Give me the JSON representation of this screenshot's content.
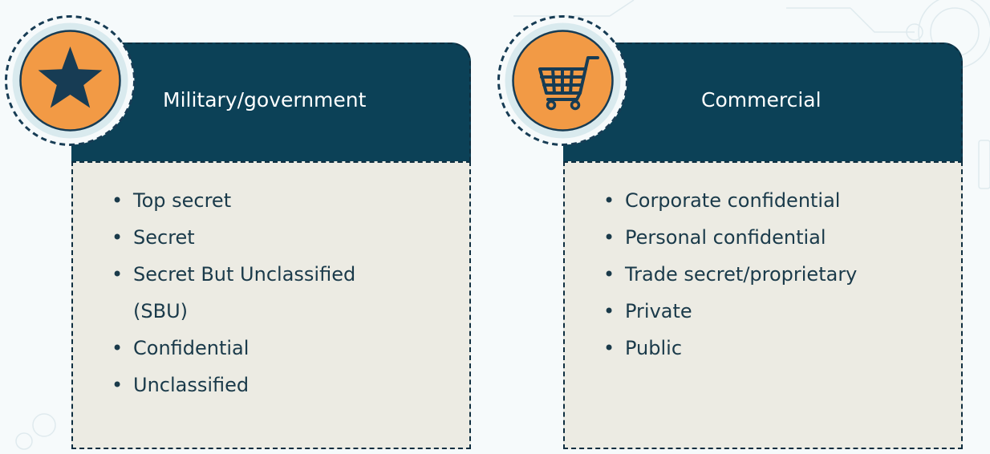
{
  "cards": [
    {
      "title": "Military/government",
      "icon": "star-icon",
      "items": [
        "Top secret",
        "Secret",
        "Secret But Unclassified (SBU)",
        "Confidential",
        "Unclassified"
      ]
    },
    {
      "title": "Commercial",
      "icon": "shopping-cart-icon",
      "items": [
        "Corporate confidential",
        "Personal confidential",
        "Trade secret/proprietary",
        "Private",
        "Public"
      ]
    }
  ],
  "colors": {
    "header_bg": "#0c4157",
    "body_bg": "#ecebe3",
    "icon_orange": "#f29a45",
    "icon_dark": "#173c54",
    "text_dark": "#1a3a4a"
  }
}
